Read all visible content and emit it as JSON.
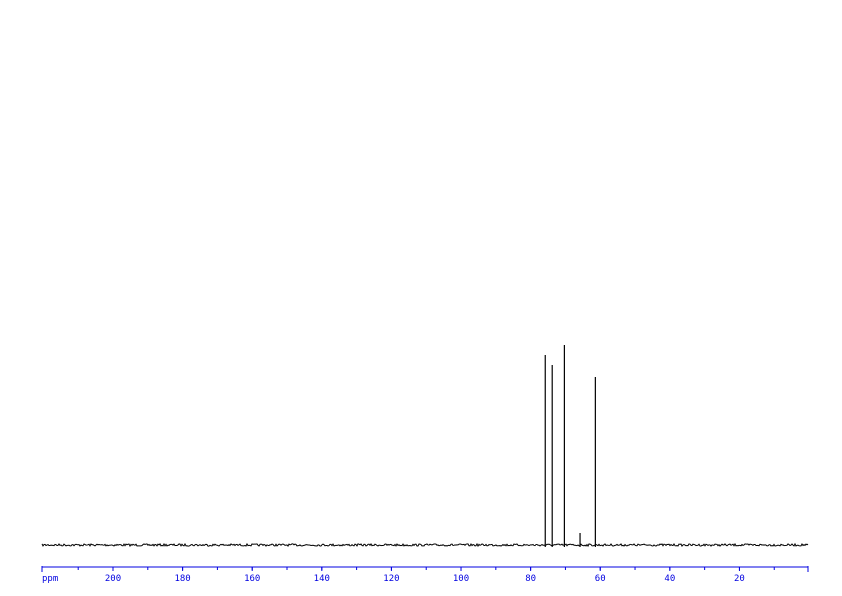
{
  "chart_data": {
    "type": "line",
    "title": "",
    "xlabel": "ppm",
    "ylabel": "",
    "xlim": [
      220.4,
      0.3
    ],
    "x_reversed": true,
    "grid": false,
    "x_ticks": [
      200,
      180,
      160,
      140,
      120,
      100,
      80,
      60,
      40,
      20
    ],
    "x_tick_labels": [
      "200",
      "180",
      "160",
      "140",
      "120",
      "100",
      "80",
      "60",
      "40",
      "20"
    ],
    "minor_tick_step": 10,
    "peaks": [
      {
        "ppm": 75.8,
        "relative_intensity": 0.95
      },
      {
        "ppm": 73.8,
        "relative_intensity": 0.9
      },
      {
        "ppm": 70.3,
        "relative_intensity": 1.0
      },
      {
        "ppm": 65.8,
        "relative_intensity": 0.06
      },
      {
        "ppm": 61.4,
        "relative_intensity": 0.84
      }
    ],
    "colors": {
      "spectrum": "#000000",
      "axis": "#0000e0"
    }
  }
}
